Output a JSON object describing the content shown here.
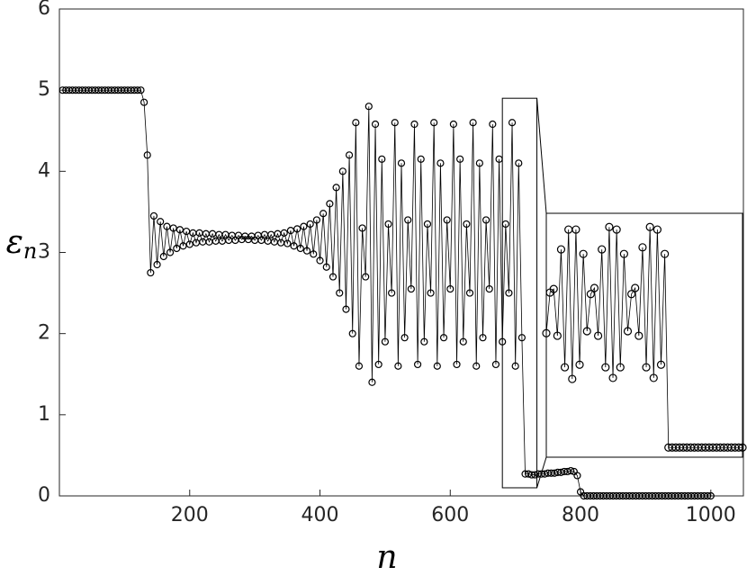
{
  "chart_data": {
    "type": "line",
    "x_label": "n",
    "y_label": "ε",
    "y_label_subscript": "n",
    "xlim": [
      0,
      1050
    ],
    "ylim": [
      0,
      6
    ],
    "xticks": [
      200,
      400,
      600,
      800,
      1000
    ],
    "yticks": [
      0,
      1,
      2,
      3,
      4,
      5,
      6
    ],
    "grid": false,
    "marker": "open-circle",
    "series": [
      {
        "color": "#000000",
        "x": [
          5,
          10,
          15,
          20,
          25,
          30,
          35,
          40,
          45,
          50,
          55,
          60,
          65,
          70,
          75,
          80,
          85,
          90,
          95,
          100,
          105,
          110,
          115,
          120,
          125,
          130,
          135,
          140,
          145,
          150,
          155,
          160,
          165,
          170,
          175,
          180,
          185,
          190,
          195,
          200,
          205,
          210,
          215,
          220,
          225,
          230,
          235,
          240,
          245,
          250,
          255,
          260,
          265,
          270,
          275,
          280,
          285,
          290,
          295,
          300,
          305,
          310,
          315,
          320,
          325,
          330,
          335,
          340,
          345,
          350,
          355,
          360,
          365,
          370,
          375,
          380,
          385,
          390,
          395,
          400,
          405,
          410,
          415,
          420,
          425,
          430,
          435,
          440,
          445,
          450,
          455,
          460,
          465,
          470,
          475,
          480,
          485,
          490,
          495,
          500,
          505,
          510,
          515,
          520,
          525,
          530,
          535,
          540,
          545,
          550,
          555,
          560,
          565,
          570,
          575,
          580,
          585,
          590,
          595,
          600,
          605,
          610,
          615,
          620,
          625,
          630,
          635,
          640,
          645,
          650,
          655,
          660,
          665,
          670,
          675,
          680,
          685,
          690,
          695,
          700,
          705,
          710,
          715,
          720,
          725,
          730,
          735,
          740,
          745,
          750,
          755,
          760,
          765,
          770,
          775,
          780,
          785,
          790,
          795,
          800,
          805,
          810,
          815,
          820,
          825,
          830,
          835,
          840,
          845,
          850,
          855,
          860,
          865,
          870,
          875,
          880,
          885,
          890,
          895,
          900,
          905,
          910,
          915,
          920,
          925,
          930,
          935,
          940,
          945,
          950,
          955,
          960,
          965,
          970,
          975,
          980,
          985,
          990,
          995,
          1000
        ],
        "values": [
          5,
          5,
          5,
          5,
          5,
          5,
          5,
          5,
          5,
          5,
          5,
          5,
          5,
          5,
          5,
          5,
          5,
          5,
          5,
          5,
          5,
          5,
          5,
          5,
          5,
          4.85,
          4.2,
          2.75,
          3.45,
          2.85,
          3.38,
          2.95,
          3.32,
          3.0,
          3.3,
          3.05,
          3.28,
          3.08,
          3.26,
          3.1,
          3.24,
          3.12,
          3.24,
          3.13,
          3.23,
          3.13,
          3.23,
          3.14,
          3.22,
          3.14,
          3.22,
          3.15,
          3.21,
          3.15,
          3.21,
          3.16,
          3.2,
          3.16,
          3.2,
          3.15,
          3.21,
          3.15,
          3.22,
          3.14,
          3.22,
          3.13,
          3.23,
          3.12,
          3.24,
          3.11,
          3.27,
          3.08,
          3.29,
          3.05,
          3.32,
          3.02,
          3.35,
          2.98,
          3.4,
          2.9,
          3.48,
          2.82,
          3.6,
          2.7,
          3.8,
          2.5,
          4.0,
          2.3,
          4.2,
          2.0,
          4.6,
          1.6,
          3.3,
          2.7,
          4.8,
          1.4,
          4.58,
          1.62,
          4.15,
          1.9,
          3.35,
          2.5,
          4.6,
          1.6,
          4.1,
          1.95,
          3.4,
          2.55,
          4.58,
          1.62,
          4.15,
          1.9,
          3.35,
          2.5,
          4.6,
          1.6,
          4.1,
          1.95,
          3.4,
          2.55,
          4.58,
          1.62,
          4.15,
          1.9,
          3.35,
          2.5,
          4.6,
          1.6,
          4.1,
          1.95,
          3.4,
          2.55,
          4.58,
          1.62,
          4.15,
          1.9,
          3.35,
          2.5,
          4.6,
          1.6,
          4.1,
          1.95,
          0.27,
          0.27,
          0.26,
          0.26,
          0.27,
          0.27,
          0.27,
          0.28,
          0.28,
          0.28,
          0.29,
          0.29,
          0.3,
          0.3,
          0.31,
          0.3,
          0.25,
          0.05,
          0,
          0,
          0,
          0,
          0,
          0,
          0,
          0,
          0,
          0,
          0,
          0,
          0,
          0,
          0,
          0,
          0,
          0,
          0,
          0,
          0,
          0,
          0,
          0,
          0,
          0,
          0,
          0,
          0,
          0,
          0,
          0,
          0,
          0,
          0,
          0,
          0,
          0,
          0,
          0
        ]
      }
    ],
    "inset": {
      "xlim": [
        680,
        733
      ],
      "ylim": [
        0.1,
        4.9
      ],
      "x": [
        680,
        681,
        682,
        683,
        684,
        685,
        686,
        687,
        688,
        689,
        690,
        691,
        692,
        693,
        694,
        695,
        696,
        697,
        698,
        699,
        700,
        701,
        702,
        703,
        704,
        705,
        706,
        707,
        708,
        709,
        710,
        711,
        712,
        713,
        714,
        715,
        716,
        717,
        718,
        719,
        720,
        721,
        722,
        723,
        724,
        725,
        726,
        727,
        728,
        729,
        730,
        731,
        732,
        733
      ],
      "values": [
        2.54,
        3.34,
        3.41,
        2.49,
        4.19,
        1.87,
        4.58,
        1.64,
        4.58,
        1.92,
        4.1,
        2.58,
        3.31,
        3.43,
        2.49,
        4.19,
        1.87,
        4.63,
        1.66,
        4.58,
        1.87,
        4.1,
        2.58,
        3.31,
        3.43,
        2.49,
        4.23,
        1.87,
        4.63,
        1.66,
        4.58,
        1.92,
        4.1,
        0.29,
        0.29,
        0.29,
        0.29,
        0.29,
        0.29,
        0.29,
        0.29,
        0.29,
        0.29,
        0.29,
        0.29,
        0.29,
        0.29,
        0.29,
        0.29,
        0.29,
        0.29,
        0.29,
        0.29,
        0.29
      ]
    }
  }
}
